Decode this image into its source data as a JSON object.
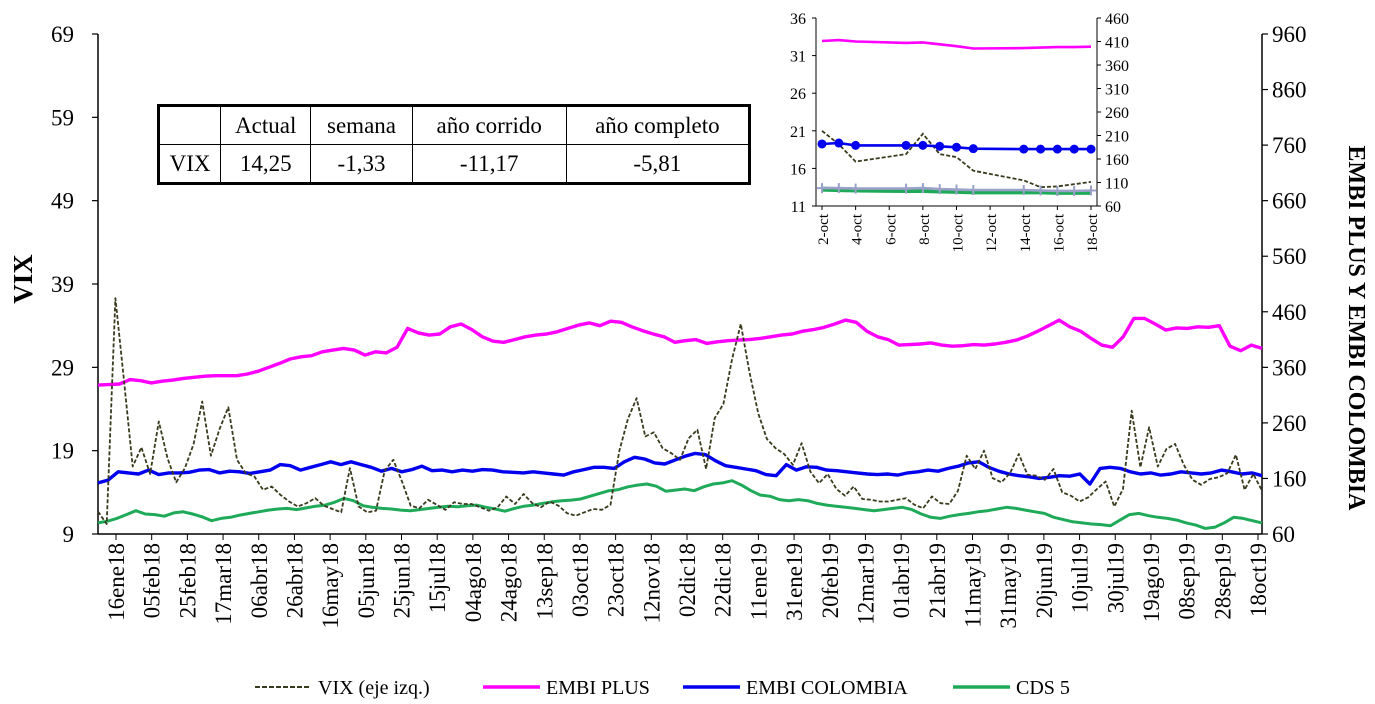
{
  "chart_data": [
    {
      "type": "line",
      "title": "",
      "ylabel_left": "VIX",
      "ylabel_right": "EMBI PLUS Y EMBI COLOMBIA",
      "y_left_ticks": [
        "69",
        "59",
        "49",
        "39",
        "29",
        "19",
        "9"
      ],
      "y_left_range": [
        9,
        69
      ],
      "y_right_ticks": [
        "960",
        "860",
        "760",
        "660",
        "560",
        "460",
        "360",
        "260",
        "160",
        "60"
      ],
      "y_right_range": [
        60,
        960
      ],
      "x_ticks": [
        "16ene18",
        "05feb18",
        "25feb18",
        "17mar18",
        "06abr18",
        "26abr18",
        "16may18",
        "05jun18",
        "25jun18",
        "15jul18",
        "04ago18",
        "24ago18",
        "13sep18",
        "03oct18",
        "23oct18",
        "12nov18",
        "02dic18",
        "22dic18",
        "11ene19",
        "31ene19",
        "20feb19",
        "12mar19",
        "01abr19",
        "21abr19",
        "11may19",
        "31may19",
        "20jun19",
        "10jul19",
        "30jul19",
        "19ago19",
        "08sep19",
        "28sep19",
        "18oct19"
      ],
      "grid": false,
      "legend_position": "bottom",
      "colors": {
        "vix": "#3a3a1e",
        "embi_plus": "#ff00ff",
        "embi_colombia": "#0000ee",
        "cds5": "#1faa59"
      },
      "series": [
        {
          "name": "VIX (eje izq.)",
          "axis": "left",
          "style": "dashed",
          "values": [
            11.7,
            10.2,
            37.3,
            27.3,
            17.1,
            19.4,
            16.2,
            22.5,
            18.1,
            15.2,
            16.9,
            19.8,
            24.9,
            18.4,
            21.6,
            24.2,
            17.9,
            16.3,
            15.9,
            14.3,
            14.7,
            13.7,
            12.9,
            12.3,
            12.7,
            13.3,
            12.4,
            12.0,
            11.6,
            16.9,
            12.3,
            11.6,
            11.8,
            16.6,
            17.9,
            15.3,
            12.4,
            12.1,
            13.1,
            12.5,
            11.9,
            12.8,
            12.6,
            12.6,
            12.2,
            11.8,
            12.2,
            13.5,
            12.6,
            13.8,
            12.7,
            12.2,
            12.9,
            12.4,
            11.5,
            11.2,
            11.6,
            12.0,
            11.9,
            12.5,
            18.9,
            22.8,
            25.3,
            20.7,
            21.2,
            19.3,
            18.7,
            17.9,
            20.5,
            21.5,
            16.8,
            22.9,
            24.6,
            30.0,
            34.2,
            28.4,
            23.5,
            20.4,
            19.3,
            18.6,
            17.3,
            19.9,
            16.5,
            15.1,
            16.2,
            14.4,
            13.6,
            14.7,
            13.2,
            13.1,
            12.9,
            12.9,
            13.1,
            13.3,
            12.5,
            12.1,
            13.5,
            12.7,
            12.6,
            14.2,
            18.4,
            16.8,
            19.0,
            15.7,
            15.2,
            16.3,
            18.6,
            16.1,
            16.0,
            15.5,
            16.8,
            14.0,
            13.6,
            12.9,
            13.4,
            14.4,
            15.3,
            12.3,
            14.4,
            23.8,
            17.0,
            21.8,
            17.1,
            19.2,
            19.8,
            17.3,
            15.5,
            14.9,
            15.6,
            15.8,
            16.3,
            18.5,
            14.3,
            16.2,
            14.2
          ]
        },
        {
          "name": "EMBI PLUS",
          "axis": "right",
          "style": "solid",
          "values": [
            328,
            329,
            330,
            338,
            336,
            332,
            335,
            337,
            340,
            342,
            344,
            345,
            345,
            345,
            348,
            353,
            360,
            367,
            375,
            379,
            381,
            388,
            391,
            394,
            391,
            382,
            388,
            386,
            396,
            430,
            422,
            418,
            420,
            433,
            438,
            428,
            415,
            407,
            405,
            410,
            415,
            418,
            420,
            424,
            430,
            436,
            440,
            435,
            443,
            441,
            433,
            426,
            420,
            415,
            405,
            408,
            410,
            403,
            406,
            408,
            409,
            410,
            412,
            415,
            418,
            420,
            425,
            428,
            432,
            438,
            445,
            441,
            425,
            415,
            410,
            400,
            401,
            402,
            404,
            400,
            398,
            399,
            401,
            400,
            402,
            405,
            409,
            416,
            425,
            435,
            445,
            433,
            425,
            412,
            400,
            396,
            415,
            448,
            448,
            438,
            427,
            431,
            430,
            433,
            432,
            435,
            398,
            390,
            400,
            394
          ]
        },
        {
          "name": "EMBI COLOMBIA",
          "axis": "right",
          "style": "solid",
          "values": [
            152,
            157,
            172,
            170,
            168,
            175,
            167,
            170,
            170,
            171,
            175,
            176,
            170,
            173,
            172,
            169,
            172,
            175,
            185,
            183,
            175,
            180,
            185,
            190,
            185,
            190,
            185,
            180,
            173,
            178,
            172,
            176,
            182,
            174,
            175,
            172,
            175,
            173,
            176,
            175,
            172,
            171,
            170,
            172,
            170,
            168,
            166,
            172,
            176,
            180,
            180,
            178,
            190,
            198,
            195,
            188,
            186,
            193,
            200,
            205,
            203,
            192,
            183,
            180,
            177,
            174,
            167,
            165,
            185,
            175,
            181,
            180,
            175,
            174,
            172,
            170,
            168,
            167,
            168,
            166,
            170,
            172,
            175,
            173,
            178,
            182,
            188,
            190,
            180,
            173,
            168,
            165,
            163,
            160,
            162,
            165,
            164,
            168,
            150,
            178,
            180,
            178,
            172,
            168,
            170,
            166,
            168,
            172,
            170,
            168,
            170,
            175,
            172,
            168,
            170,
            165
          ]
        },
        {
          "name": "CDS 5",
          "axis": "right",
          "style": "solid",
          "values": [
            80,
            83,
            88,
            95,
            102,
            96,
            95,
            92,
            98,
            100,
            96,
            91,
            84,
            88,
            90,
            94,
            97,
            100,
            103,
            105,
            106,
            104,
            107,
            110,
            112,
            117,
            124,
            120,
            111,
            108,
            106,
            105,
            103,
            102,
            104,
            106,
            108,
            110,
            109,
            111,
            112,
            108,
            105,
            101,
            106,
            110,
            112,
            115,
            118,
            120,
            121,
            123,
            128,
            133,
            138,
            140,
            145,
            148,
            150,
            146,
            137,
            139,
            141,
            138,
            145,
            150,
            152,
            156,
            148,
            138,
            130,
            128,
            122,
            120,
            122,
            120,
            115,
            112,
            110,
            108,
            106,
            104,
            102,
            104,
            106,
            108,
            104,
            96,
            90,
            88,
            92,
            95,
            97,
            100,
            102,
            105,
            108,
            106,
            103,
            100,
            97,
            90,
            86,
            82,
            80,
            78,
            77,
            75,
            85,
            95,
            97,
            93,
            90,
            88,
            85,
            80,
            76,
            70,
            72,
            80,
            90,
            88,
            84,
            80
          ]
        }
      ]
    },
    {
      "type": "line",
      "title": "",
      "y_left_ticks": [
        "36",
        "31",
        "26",
        "21",
        "16",
        "11"
      ],
      "y_left_range": [
        11,
        36
      ],
      "y_right_ticks": [
        "460",
        "410",
        "360",
        "310",
        "260",
        "210",
        "160",
        "110",
        "60"
      ],
      "y_right_range": [
        60,
        460
      ],
      "x_ticks": [
        "2-oct",
        "4-oct",
        "6-oct",
        "8-oct",
        "10-oct",
        "12-oct",
        "14-oct",
        "16-oct",
        "18-oct"
      ],
      "x_range": [
        2,
        18
      ],
      "series": [
        {
          "name": "VIX (eje izq.)",
          "axis": "left",
          "style": "dashed",
          "x": [
            2,
            3,
            4,
            7,
            8,
            9,
            10,
            11,
            14,
            15,
            16,
            17,
            18
          ],
          "values": [
            21.0,
            19.2,
            16.9,
            17.9,
            20.6,
            17.9,
            17.5,
            15.7,
            14.4,
            13.5,
            13.6,
            13.9,
            14.2
          ]
        },
        {
          "name": "EMBI PLUS",
          "axis": "right",
          "style": "solid",
          "x": [
            2,
            3,
            4,
            7,
            8,
            9,
            10,
            11,
            14,
            15,
            16,
            17,
            18
          ],
          "values": [
            411,
            413,
            410,
            407,
            408,
            404,
            400,
            395,
            396,
            397,
            398,
            398,
            399
          ]
        },
        {
          "name": "EMBI COLOMBIA",
          "axis": "right",
          "style": "solid",
          "x": [
            2,
            3,
            4,
            7,
            8,
            9,
            10,
            11,
            14,
            15,
            16,
            17,
            18
          ],
          "values": [
            192,
            194,
            189,
            189,
            189,
            187,
            185,
            182,
            181,
            181,
            181,
            181,
            181
          ]
        },
        {
          "name": "CDS 5",
          "axis": "right",
          "style": "solid",
          "x": [
            2,
            3,
            4,
            7,
            8,
            9,
            10,
            11,
            14,
            15,
            16,
            17,
            18
          ],
          "values": [
            96,
            95,
            94,
            93,
            93,
            92,
            91,
            90,
            90,
            90,
            89,
            89,
            89
          ]
        },
        {
          "name": "",
          "axis": "right",
          "style": "solid",
          "x": [
            2,
            3,
            4,
            7,
            8,
            9,
            10,
            11,
            14,
            15,
            16,
            17,
            18
          ],
          "values": [
            98,
            98,
            97,
            97,
            98,
            96,
            95,
            94,
            94,
            93,
            92,
            92,
            93
          ]
        }
      ]
    }
  ],
  "table": {
    "headers": [
      "",
      "Actual",
      "semana",
      "año corrido",
      "año completo"
    ],
    "row": [
      "VIX",
      "14,25",
      "-1,33",
      "-11,17",
      "-5,81"
    ]
  }
}
